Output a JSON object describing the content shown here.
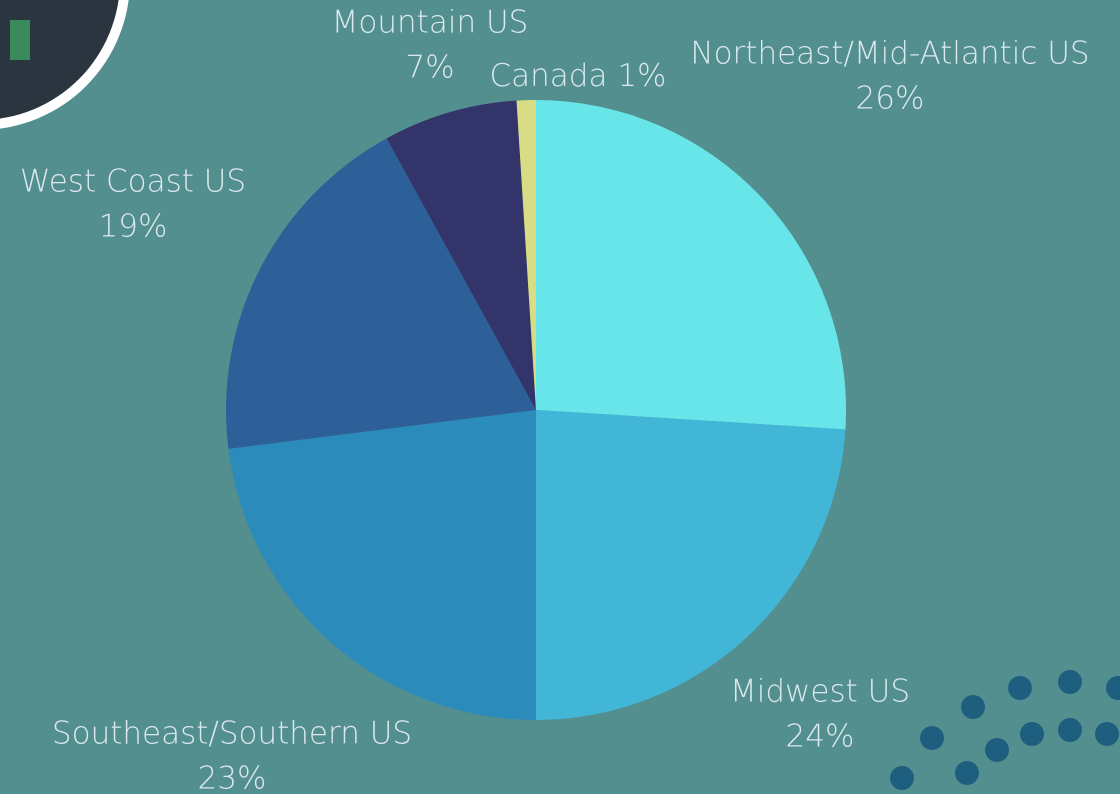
{
  "chart_data": {
    "type": "pie",
    "categories": [
      "Northeast/Mid-Atlantic US",
      "Midwest US",
      "Southeast/Southern US",
      "West Coast US",
      "Mountain US",
      "Canada"
    ],
    "values": [
      26,
      24,
      23,
      19,
      7,
      1
    ],
    "value_labels": [
      "26%",
      "24%",
      "23%",
      "19%",
      "7%",
      "1%"
    ],
    "colors": [
      "#68e5e8",
      "#42b6d6",
      "#2b8bbb",
      "#2d5f98",
      "#32346a",
      "#d8dd85"
    ]
  }
}
